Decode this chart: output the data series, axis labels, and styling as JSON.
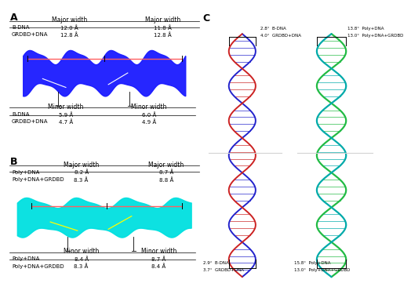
{
  "panel_A_label": "A",
  "panel_B_label": "B",
  "panel_C_label": "C",
  "A_header_left": "Major width",
  "A_header_right": "Major width",
  "A_rows": [
    [
      "B-DNA",
      "12.0 Å",
      "11.8 Å"
    ],
    [
      "GRDBD+DNA",
      "12.8 Å",
      "12.8 Å"
    ]
  ],
  "A_minor_header_left": "Minor width",
  "A_minor_header_right": "Minor width",
  "A_minor_rows": [
    [
      "B-DNA",
      "5.9 Å",
      "6.0 Å"
    ],
    [
      "GRDBD+DNA",
      "4.7 Å",
      "4.9 Å"
    ]
  ],
  "B_header_left": "Major width",
  "B_header_right": "Major width",
  "B_rows": [
    [
      "Poly+DNA",
      "8.2 Å",
      "8.7 Å"
    ],
    [
      "Poly+DNA+GRDBD",
      "8.3 Å",
      "8.8 Å"
    ]
  ],
  "B_minor_header_left": "Minor width",
  "B_minor_header_right": "Minor width",
  "B_minor_rows": [
    [
      "Poly+DNA",
      "8.4 Å",
      "8.7 Å"
    ],
    [
      "Poly+DNA+GRDBD",
      "8.3 Å",
      "8.4 Å"
    ]
  ],
  "C_left_top_1": "2.8°  B-DNA",
  "C_left_top_2": "4.0°  GRDBD+DNA",
  "C_left_bot_1": "2.9°  B-DNA",
  "C_left_bot_2": "3.7°  GRDBD+DNA",
  "C_right_top_1": "13.8°  Poly+DNA",
  "C_right_top_2": "13.0°  Poly+DNA+GRDBD",
  "C_right_bot_1": "15.8°  Poly+DNA",
  "C_right_bot_2": "13.0°  Poly+DNA+GRDBD",
  "dna_blue_color": "#1a1aff",
  "dna_cyan_color": "#00e0e0",
  "bg_color": "#ffffff",
  "line_color_major": "#ff6060",
  "line_color_minor": "#000000"
}
